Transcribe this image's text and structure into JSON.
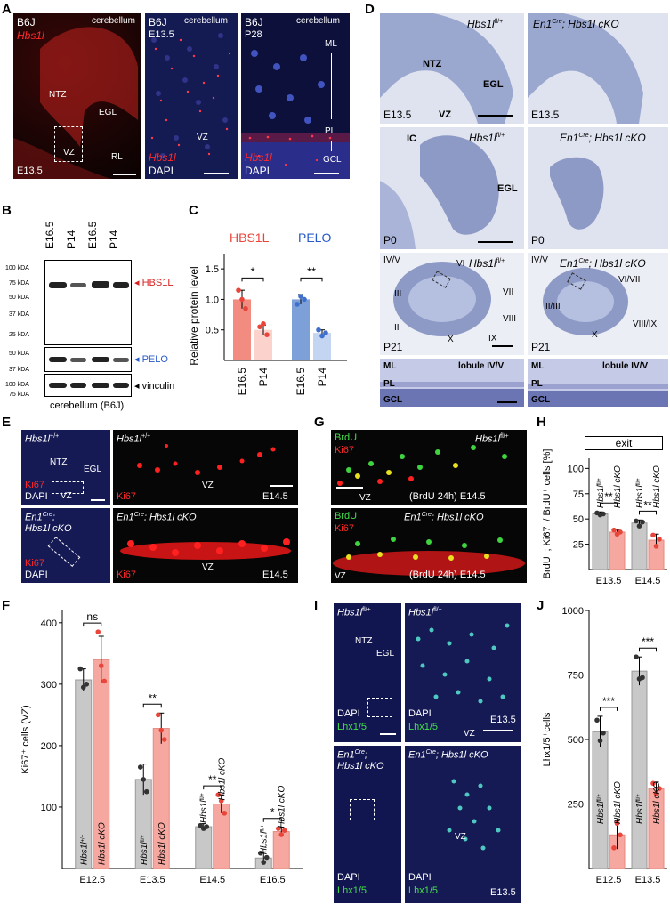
{
  "panels": {
    "A": "A",
    "B": "B",
    "C": "C",
    "D": "D",
    "E": "E",
    "F": "F",
    "G": "G",
    "H": "H",
    "I": "I",
    "J": "J"
  },
  "A": {
    "p1": {
      "strain": "B6J",
      "gene": "Hbs1l",
      "region": "cerebellum",
      "ntz": "NTZ",
      "egl": "EGL",
      "vz": "VZ",
      "rl": "RL",
      "stage": "E13.5"
    },
    "p2": {
      "strain": "B6J",
      "stage": "E13.5",
      "region": "cerebellum",
      "vz": "VZ",
      "gene": "Hbs1l",
      "dapi": "DAPI"
    },
    "p3": {
      "strain": "B6J",
      "stage": "P28",
      "region": "cerebellum",
      "ml": "ML",
      "pl": "PL",
      "gcl": "GCL",
      "gene": "Hbs1l",
      "dapi": "DAPI"
    }
  },
  "B": {
    "lanes": [
      "E16.5",
      "P14",
      "E16.5",
      "P14"
    ],
    "mw_top": [
      "100 kDA",
      "75 kDA",
      "50 kDA",
      "37 kDA",
      "25 kDA"
    ],
    "mw_mid": [
      "50 kDA",
      "37 kDA"
    ],
    "mw_bot": [
      "100 kDA",
      "75 kDA"
    ],
    "hbs1l": "HBS1L",
    "pelo": "PELO",
    "vinculin": "vinculin",
    "caption": "cerebellum (B6J)"
  },
  "C": {
    "hbs1l": "HBS1L",
    "pelo": "PELO",
    "ylabel": "Relative protein level",
    "yticks": [
      "0.5",
      "1.0",
      "1.5"
    ],
    "xlabels": [
      "E16.5",
      "P14",
      "E16.5",
      "P14"
    ],
    "sig1": "*",
    "sig2": "**"
  },
  "D": {
    "r1": {
      "ctrl": "Hbs1l",
      "ctrl_sup": "fl/+",
      "ko_pre": "En1",
      "ko_sup": "Cre",
      "ko_post": "; Hbs1l cKO",
      "ntz": "NTZ",
      "egl": "EGL",
      "vz": "VZ",
      "stage": "E13.5"
    },
    "r2": {
      "ic": "IC",
      "egl": "EGL",
      "stage": "P0"
    },
    "r3": {
      "iv_v": "IV/V",
      "vi": "VI",
      "iii": "III",
      "ii": "II",
      "vii": "VII",
      "viii": "VIII",
      "ix": "IX",
      "x": "X",
      "stage": "P21",
      "ko_iv_v": "IV/V",
      "ko_vi_vii": "VI/VII",
      "ko_ii_iii": "II/III",
      "ko_viii_ix": "VIII/IX",
      "ko_x": "X"
    },
    "r4": {
      "ml": "ML",
      "pl": "PL",
      "gcl": "GCL",
      "lobule": "lobule IV/V"
    }
  },
  "E": {
    "ctrl": "Hbs1l",
    "ctrl_sup": "+/+",
    "ntz": "NTZ",
    "egl": "EGL",
    "vz": "VZ",
    "ki67": "Ki67",
    "dapi": "DAPI",
    "stage": "E14.5",
    "ko_line1_pre": "En1",
    "ko_line1_sup": "Cre",
    "ko_line1_post": ";",
    "ko_line2": "Hbs1l cKO",
    "ko_full": "; Hbs1l cKO"
  },
  "F": {
    "ylabel": "Ki67⁺ cells (VZ)",
    "yticks": [
      "100",
      "200",
      "300",
      "400"
    ],
    "groups": [
      "E12.5",
      "E13.5",
      "E14.5",
      "E16.5"
    ],
    "sigs": [
      "ns",
      "**",
      "**",
      "*"
    ],
    "ctrl_wt": "Hbs1l",
    "ctrl_wt_sup": "+/+",
    "ctrl_fl": "Hbs1l",
    "ctrl_fl_sup": "fl/+",
    "ko": "Hbs1l cKO"
  },
  "G": {
    "brdu": "BrdU",
    "ki67": "Ki67",
    "ctrl": "Hbs1l",
    "ctrl_sup": "fl/+",
    "vz": "VZ",
    "caption": "(BrdU 24h) E14.5",
    "ko_pre": "En1",
    "ko_sup": "Cre",
    "ko_post": "; Hbs1l cKO"
  },
  "H": {
    "header": "exit",
    "ylabel": "BrdU⁺; Ki67⁻/ BrdU⁺ cells [%]",
    "yticks": [
      "25",
      "50",
      "75",
      "100"
    ],
    "groups": [
      "E13.5",
      "E14.5"
    ],
    "sigs": [
      "**",
      "**"
    ],
    "ctrl": "Hbs1l",
    "ctrl_sup": "fl/+",
    "ko": "Hbs1l cKO"
  },
  "I": {
    "ctrl": "Hbs1l",
    "ctrl_sup": "fl/+",
    "ntz": "NTZ",
    "egl": "EGL",
    "dapi": "DAPI",
    "lhx": "Lhx1/5",
    "stage": "E13.5",
    "vz": "VZ",
    "ko_line1_pre": "En1",
    "ko_line1_sup": "Cre",
    "ko_line1_post": ";",
    "ko_line2": "Hbs1l cKO",
    "ko_full": "; Hbs1l cKO"
  },
  "J": {
    "ylabel": "Lhx1/5⁺cells",
    "yticks": [
      "250",
      "500",
      "750",
      "1000"
    ],
    "groups": [
      "E12.5",
      "E13.5"
    ],
    "sigs": [
      "***",
      "***"
    ],
    "ctrl": "Hbs1l",
    "ctrl_sup": "fl/+",
    "ko": "Hbs1l cKO"
  },
  "chart_data": [
    {
      "type": "bar",
      "panel": "C",
      "categories": [
        "E16.5",
        "P14",
        "E16.5",
        "P14"
      ],
      "groups": [
        "HBS1L",
        "PELO"
      ],
      "values": [
        1.0,
        0.5,
        1.0,
        0.45
      ],
      "errors": [
        0.15,
        0.08,
        0.08,
        0.05
      ],
      "points": [
        [
          1.15,
          1.0,
          0.85
        ],
        [
          0.55,
          0.6,
          0.42
        ],
        [
          0.92,
          1.05,
          1.0
        ],
        [
          0.5,
          0.4,
          0.45
        ]
      ],
      "colors": [
        "#f28c80",
        "#fcd2cc",
        "#7ea0d8",
        "#c3d5f0"
      ],
      "dot_colors": [
        "#e8463a",
        "#e8463a",
        "#3f6fcf",
        "#3f6fcf"
      ],
      "ylabel": "Relative protein level",
      "ylim": [
        0,
        1.75
      ],
      "yticks": [
        0.5,
        1.0,
        1.5
      ],
      "significance": [
        "*",
        "**"
      ]
    },
    {
      "type": "bar",
      "panel": "F",
      "categories": [
        "E12.5",
        "E13.5",
        "E14.5",
        "E16.5"
      ],
      "series": [
        {
          "values": [
            307,
            145,
            68,
            17
          ],
          "errors": [
            18,
            25,
            5,
            10
          ],
          "points": [
            [
              325,
              295,
              300
            ],
            [
              165,
              145,
              125
            ],
            [
              70,
              65,
              68
            ],
            [
              25,
              10,
              18
            ]
          ]
        },
        {
          "name": "Hbs1l cKO",
          "values": [
            340,
            228,
            105,
            60
          ],
          "errors": [
            38,
            25,
            15,
            7
          ],
          "points": [
            [
              385,
              330,
              305
            ],
            [
              250,
              225,
              210
            ],
            [
              120,
              110,
              90
            ],
            [
              65,
              55,
              62
            ]
          ]
        }
      ],
      "ylabel": "Ki67⁺ cells (VZ)",
      "ylim": [
        0,
        420
      ],
      "yticks": [
        100,
        200,
        300,
        400
      ],
      "significance": [
        "ns",
        "**",
        "**",
        "*"
      ]
    },
    {
      "type": "bar",
      "panel": "H",
      "categories": [
        "E13.5",
        "E14.5"
      ],
      "series": [
        {
          "values": [
            55,
            46
          ],
          "errors": [
            2,
            3
          ],
          "points": [
            [
              56,
              54,
              55
            ],
            [
              48,
              43,
              47
            ]
          ]
        },
        {
          "name": "Hbs1l cKO",
          "values": [
            37,
            29
          ],
          "errors": [
            2,
            6
          ],
          "points": [
            [
              39,
              35,
              37
            ],
            [
              34,
              23,
              30
            ]
          ]
        }
      ],
      "ylabel": "BrdU⁺; Ki67⁻/ BrdU⁺ cells [%]",
      "ylim": [
        0,
        110
      ],
      "yticks": [
        25,
        50,
        75,
        100
      ],
      "significance": [
        "**",
        "**"
      ]
    },
    {
      "type": "bar",
      "panel": "J",
      "categories": [
        "E12.5",
        "E13.5"
      ],
      "series": [
        {
          "values": [
            530,
            765
          ],
          "errors": [
            60,
            55
          ],
          "points": [
            [
              575,
              495,
              525
            ],
            [
              820,
              735,
              740
            ]
          ]
        },
        {
          "name": "Hbs1l cKO",
          "values": [
            130,
            310
          ],
          "errors": [
            55,
            25
          ],
          "points": [
            [
              80,
              175,
              130
            ],
            [
              330,
              290,
              310
            ]
          ]
        }
      ],
      "ylabel": "Lhx1/5⁺cells",
      "ylim": [
        0,
        1000
      ],
      "yticks": [
        250,
        500,
        750,
        1000
      ],
      "significance": [
        "***",
        "***"
      ]
    }
  ]
}
